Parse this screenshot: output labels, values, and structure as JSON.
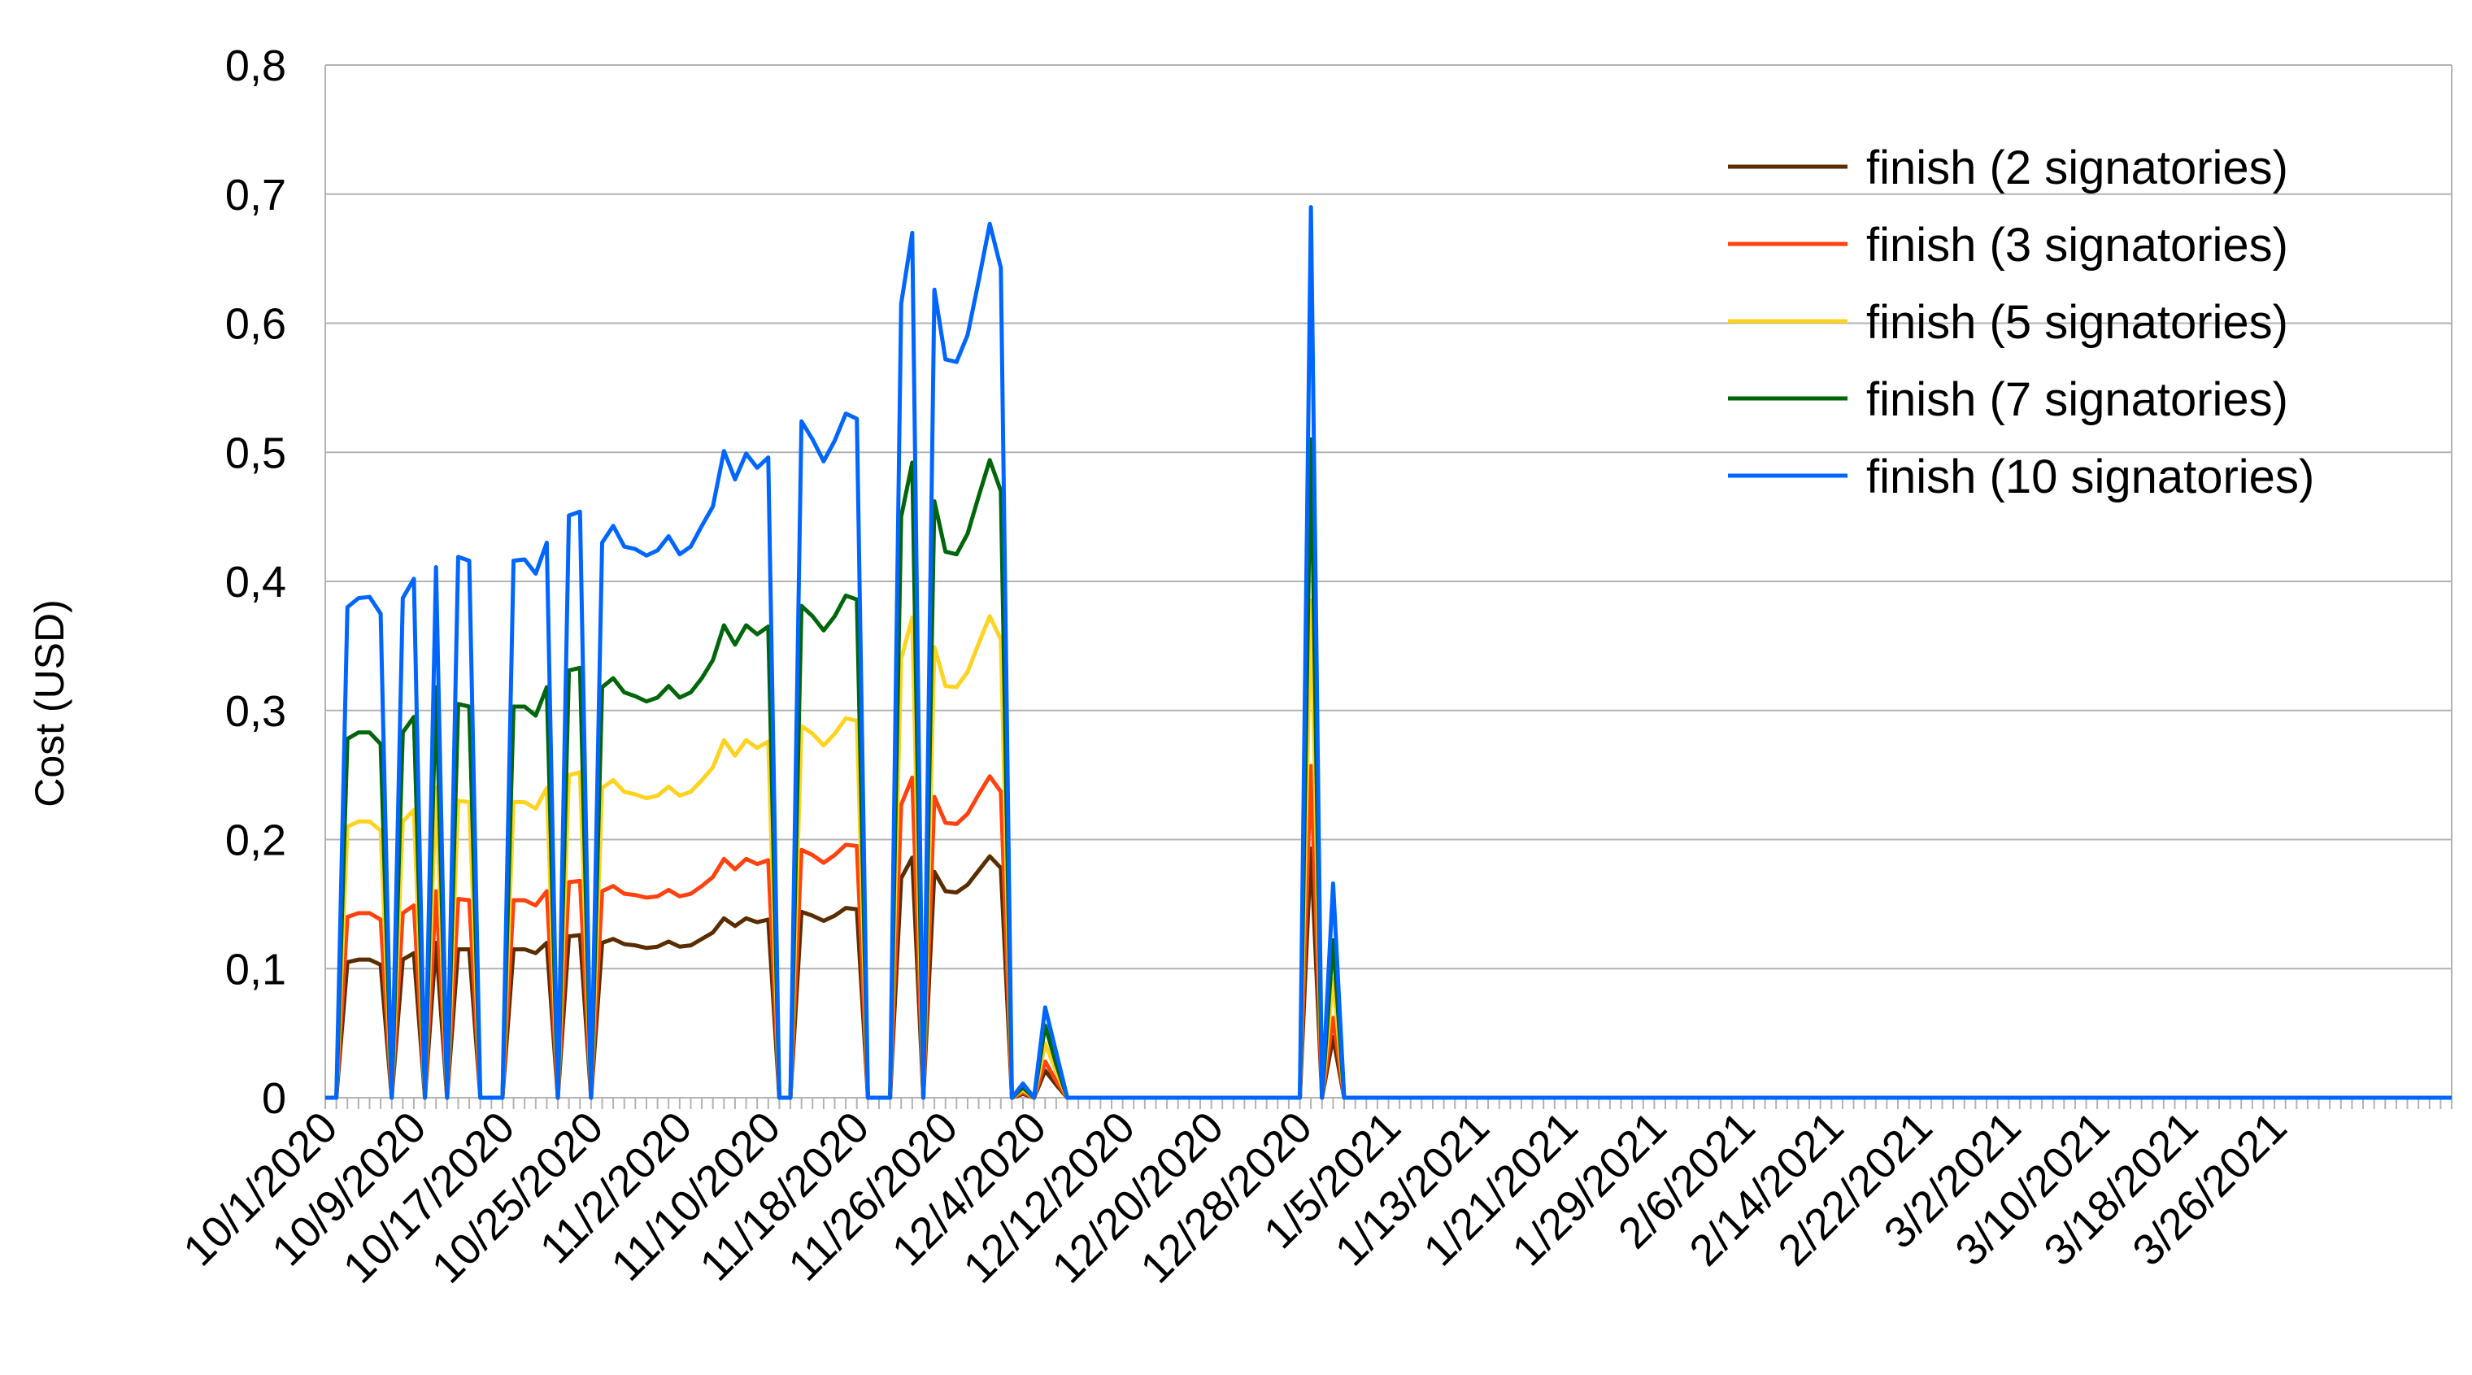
{
  "chart_data": {
    "type": "line",
    "title": "",
    "xlabel": "",
    "ylabel": "Cost (USD)",
    "ylim": [
      0,
      0.8
    ],
    "y_ticks": [
      "0",
      "0,1",
      "0,2",
      "0,3",
      "0,4",
      "0,5",
      "0,6",
      "0,7",
      "0,8"
    ],
    "x_start": "10/1/2020",
    "x_end": "3/31/2021",
    "x_tick_labels": [
      "10/1/2020",
      "10/9/2020",
      "10/17/2020",
      "10/25/2020",
      "11/2/2020",
      "11/10/2020",
      "11/18/2020",
      "11/26/2020",
      "12/4/2020",
      "12/12/2020",
      "12/20/2020",
      "12/28/2020",
      "1/5/2021",
      "1/13/2021",
      "1/21/2021",
      "1/29/2021",
      "2/6/2021",
      "2/14/2021",
      "2/22/2021",
      "3/2/2021",
      "3/10/2021",
      "3/18/2021",
      "3/26/2021"
    ],
    "grid": true,
    "legend_position": "top-right",
    "series": [
      {
        "name": "finish (2 signatories)",
        "color": "#5a2d00",
        "values": [
          0,
          0,
          0.105,
          0.107,
          0.107,
          0.103,
          0,
          0.107,
          0.112,
          0,
          0.12,
          0,
          0.115,
          0.115,
          0,
          0,
          0,
          0.115,
          0.115,
          0.112,
          0.12,
          0,
          0.125,
          0.126,
          0,
          0.12,
          0.123,
          0.119,
          0.118,
          0.116,
          0.117,
          0.121,
          0.117,
          0.118,
          0.123,
          0.128,
          0.139,
          0.133,
          0.139,
          0.136,
          0.138,
          0,
          0,
          0.144,
          0.141,
          0.137,
          0.141,
          0.147,
          0.146,
          0,
          0,
          0,
          0.17,
          0.186,
          0,
          0.175,
          0.16,
          0.159,
          0.165,
          0.176,
          0.187,
          0.178,
          0,
          0.003,
          0,
          0.021,
          0.01,
          0,
          0,
          0,
          0,
          0,
          0,
          0,
          0,
          0,
          0,
          0,
          0,
          0,
          0,
          0,
          0,
          0,
          0,
          0,
          0,
          0,
          0,
          0.193,
          0,
          0.047,
          0,
          0,
          0,
          0,
          0,
          0,
          0,
          0,
          0,
          0,
          0,
          0,
          0,
          0,
          0,
          0,
          0,
          0,
          0,
          0,
          0,
          0,
          0,
          0,
          0,
          0,
          0,
          0,
          0,
          0,
          0,
          0,
          0,
          0,
          0,
          0,
          0,
          0,
          0,
          0,
          0,
          0,
          0,
          0,
          0,
          0,
          0,
          0,
          0,
          0,
          0,
          0,
          0,
          0,
          0,
          0,
          0,
          0,
          0,
          0,
          0,
          0,
          0,
          0,
          0,
          0,
          0,
          0,
          0,
          0,
          0,
          0,
          0,
          0,
          0,
          0,
          0,
          0,
          0,
          0,
          0,
          0,
          0,
          0,
          0,
          0,
          0,
          0,
          0,
          0,
          0,
          0,
          0,
          0,
          0,
          0,
          0,
          0,
          0,
          0,
          0
        ]
      },
      {
        "name": "finish (3 signatories)",
        "color": "#ff420e",
        "values": [
          0,
          0,
          0.14,
          0.143,
          0.143,
          0.138,
          0,
          0.143,
          0.149,
          0,
          0.16,
          0,
          0.154,
          0.153,
          0,
          0,
          0,
          0.153,
          0.153,
          0.149,
          0.16,
          0,
          0.167,
          0.168,
          0,
          0.16,
          0.164,
          0.158,
          0.157,
          0.155,
          0.156,
          0.161,
          0.156,
          0.158,
          0.164,
          0.171,
          0.185,
          0.177,
          0.185,
          0.181,
          0.184,
          0,
          0,
          0.192,
          0.188,
          0.182,
          0.188,
          0.196,
          0.195,
          0,
          0,
          0,
          0.227,
          0.248,
          0,
          0.233,
          0.213,
          0.212,
          0.22,
          0.235,
          0.249,
          0.237,
          0,
          0.004,
          0,
          0.028,
          0.013,
          0,
          0,
          0,
          0,
          0,
          0,
          0,
          0,
          0,
          0,
          0,
          0,
          0,
          0,
          0,
          0,
          0,
          0,
          0,
          0,
          0,
          0,
          0.257,
          0,
          0.062,
          0,
          0,
          0,
          0,
          0,
          0,
          0,
          0,
          0,
          0,
          0,
          0,
          0,
          0,
          0,
          0,
          0,
          0,
          0,
          0,
          0,
          0,
          0,
          0,
          0,
          0,
          0,
          0,
          0,
          0,
          0,
          0,
          0,
          0,
          0,
          0,
          0,
          0,
          0,
          0,
          0,
          0,
          0,
          0,
          0,
          0,
          0,
          0,
          0,
          0,
          0,
          0,
          0,
          0,
          0,
          0,
          0,
          0,
          0,
          0,
          0,
          0,
          0,
          0,
          0,
          0,
          0,
          0,
          0,
          0,
          0,
          0,
          0,
          0,
          0,
          0,
          0,
          0,
          0,
          0,
          0,
          0,
          0,
          0,
          0,
          0,
          0,
          0,
          0,
          0,
          0,
          0,
          0,
          0,
          0,
          0,
          0,
          0,
          0,
          0,
          0
        ]
      },
      {
        "name": "finish (5 signatories)",
        "color": "#ffd320",
        "values": [
          0,
          0,
          0.21,
          0.214,
          0.214,
          0.207,
          0,
          0.214,
          0.223,
          0,
          0.24,
          0,
          0.23,
          0.229,
          0,
          0,
          0,
          0.229,
          0.229,
          0.224,
          0.24,
          0,
          0.25,
          0.252,
          0,
          0.24,
          0.246,
          0.237,
          0.235,
          0.232,
          0.234,
          0.241,
          0.234,
          0.237,
          0.246,
          0.256,
          0.277,
          0.265,
          0.277,
          0.271,
          0.276,
          0,
          0,
          0.288,
          0.282,
          0.273,
          0.282,
          0.294,
          0.292,
          0,
          0,
          0,
          0.34,
          0.372,
          0,
          0.349,
          0.319,
          0.318,
          0.33,
          0.352,
          0.373,
          0.355,
          0,
          0.006,
          0,
          0.042,
          0.02,
          0,
          0,
          0,
          0,
          0,
          0,
          0,
          0,
          0,
          0,
          0,
          0,
          0,
          0,
          0,
          0,
          0,
          0,
          0,
          0,
          0,
          0,
          0.385,
          0,
          0.092,
          0,
          0,
          0,
          0,
          0,
          0,
          0,
          0,
          0,
          0,
          0,
          0,
          0,
          0,
          0,
          0,
          0,
          0,
          0,
          0,
          0,
          0,
          0,
          0,
          0,
          0,
          0,
          0,
          0,
          0,
          0,
          0,
          0,
          0,
          0,
          0,
          0,
          0,
          0,
          0,
          0,
          0,
          0,
          0,
          0,
          0,
          0,
          0,
          0,
          0,
          0,
          0,
          0,
          0,
          0,
          0,
          0,
          0,
          0,
          0,
          0,
          0,
          0,
          0,
          0,
          0,
          0,
          0,
          0,
          0,
          0,
          0,
          0,
          0,
          0,
          0,
          0,
          0,
          0,
          0,
          0,
          0,
          0,
          0,
          0,
          0,
          0,
          0,
          0,
          0,
          0,
          0,
          0,
          0,
          0,
          0,
          0,
          0,
          0,
          0,
          0
        ]
      },
      {
        "name": "finish (7 signatories)",
        "color": "#00660a",
        "values": [
          0,
          0,
          0.278,
          0.283,
          0.283,
          0.274,
          0,
          0.283,
          0.295,
          0,
          0.318,
          0,
          0.305,
          0.303,
          0,
          0,
          0,
          0.303,
          0.303,
          0.296,
          0.318,
          0,
          0.331,
          0.333,
          0,
          0.318,
          0.325,
          0.314,
          0.311,
          0.307,
          0.31,
          0.319,
          0.31,
          0.314,
          0.325,
          0.339,
          0.366,
          0.351,
          0.366,
          0.359,
          0.365,
          0,
          0,
          0.381,
          0.373,
          0.362,
          0.373,
          0.389,
          0.386,
          0,
          0,
          0,
          0.45,
          0.492,
          0,
          0.462,
          0.423,
          0.421,
          0.437,
          0.466,
          0.494,
          0.47,
          0,
          0.008,
          0,
          0.056,
          0.026,
          0,
          0,
          0,
          0,
          0,
          0,
          0,
          0,
          0,
          0,
          0,
          0,
          0,
          0,
          0,
          0,
          0,
          0,
          0,
          0,
          0,
          0,
          0.51,
          0,
          0.122,
          0,
          0,
          0,
          0,
          0,
          0,
          0,
          0,
          0,
          0,
          0,
          0,
          0,
          0,
          0,
          0,
          0,
          0,
          0,
          0,
          0,
          0,
          0,
          0,
          0,
          0,
          0,
          0,
          0,
          0,
          0,
          0,
          0,
          0,
          0,
          0,
          0,
          0,
          0,
          0,
          0,
          0,
          0,
          0,
          0,
          0,
          0,
          0,
          0,
          0,
          0,
          0,
          0,
          0,
          0,
          0,
          0,
          0,
          0,
          0,
          0,
          0,
          0,
          0,
          0,
          0,
          0,
          0,
          0,
          0,
          0,
          0,
          0,
          0,
          0,
          0,
          0,
          0,
          0,
          0,
          0,
          0,
          0,
          0,
          0,
          0,
          0,
          0,
          0,
          0,
          0,
          0,
          0,
          0,
          0,
          0,
          0,
          0,
          0,
          0,
          0
        ]
      },
      {
        "name": "finish (10 signatories)",
        "color": "#0066ff",
        "values": [
          0,
          0,
          0.38,
          0.387,
          0.388,
          0.375,
          0,
          0.387,
          0.402,
          0,
          0.411,
          0,
          0.419,
          0.416,
          0,
          0,
          0,
          0.416,
          0.417,
          0.406,
          0.43,
          0,
          0.451,
          0.454,
          0,
          0.43,
          0.443,
          0.427,
          0.425,
          0.42,
          0.424,
          0.435,
          0.421,
          0.427,
          0.443,
          0.458,
          0.501,
          0.479,
          0.499,
          0.488,
          0.496,
          0,
          0,
          0.524,
          0.51,
          0.493,
          0.509,
          0.53,
          0.526,
          0,
          0,
          0,
          0.615,
          0.67,
          0,
          0.626,
          0.572,
          0.57,
          0.591,
          0.633,
          0.677,
          0.643,
          0,
          0.011,
          0,
          0.07,
          0.035,
          0,
          0,
          0,
          0,
          0,
          0,
          0,
          0,
          0,
          0,
          0,
          0,
          0,
          0,
          0,
          0,
          0,
          0,
          0,
          0,
          0,
          0,
          0.69,
          0,
          0.166,
          0,
          0,
          0,
          0,
          0,
          0,
          0,
          0,
          0,
          0,
          0,
          0,
          0,
          0,
          0,
          0,
          0,
          0,
          0,
          0,
          0,
          0,
          0,
          0,
          0,
          0,
          0,
          0,
          0,
          0,
          0,
          0,
          0,
          0,
          0,
          0,
          0,
          0,
          0,
          0,
          0,
          0,
          0,
          0,
          0,
          0,
          0,
          0,
          0,
          0,
          0,
          0,
          0,
          0,
          0,
          0,
          0,
          0,
          0,
          0,
          0,
          0,
          0,
          0,
          0,
          0,
          0,
          0,
          0,
          0,
          0,
          0,
          0,
          0,
          0,
          0,
          0,
          0,
          0,
          0,
          0,
          0,
          0,
          0,
          0,
          0,
          0,
          0,
          0,
          0,
          0,
          0,
          0,
          0,
          0,
          0,
          0,
          0,
          0,
          0,
          0
        ]
      }
    ]
  }
}
